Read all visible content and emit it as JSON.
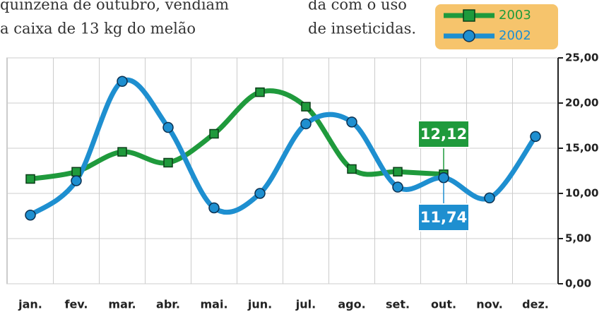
{
  "article_text": [
    "quinzena de outubro, vendiam",
    "a caixa  de 13 kg do melão",
    "da com o uso",
    "de inseticidas."
  ],
  "chart_data": {
    "type": "line",
    "categories": [
      "jan.",
      "fev.",
      "mar.",
      "abr.",
      "mai.",
      "jun.",
      "jul.",
      "ago.",
      "set.",
      "out.",
      "nov.",
      "dez."
    ],
    "series": [
      {
        "name": "2003",
        "color": "#1f9a3c",
        "marker": "square",
        "values": [
          11.6,
          12.4,
          14.6,
          13.4,
          16.6,
          21.2,
          19.6,
          12.7,
          12.4,
          12.12,
          null,
          null
        ],
        "value_labels": [
          null,
          null,
          null,
          null,
          null,
          null,
          null,
          null,
          null,
          "12,12",
          null,
          null
        ]
      },
      {
        "name": "2002",
        "color": "#1e8fd0",
        "marker": "circle",
        "values": [
          7.6,
          11.4,
          22.4,
          17.3,
          8.4,
          10.0,
          17.7,
          17.9,
          10.7,
          11.74,
          9.5,
          16.3
        ],
        "value_labels": [
          null,
          null,
          null,
          null,
          null,
          null,
          null,
          null,
          null,
          "11,74",
          null,
          null
        ]
      }
    ],
    "ylim": [
      0,
      25
    ],
    "yticks": [
      {
        "value": 0,
        "label": "0,00"
      },
      {
        "value": 5,
        "label": "5,00"
      },
      {
        "value": 10,
        "label": "10,00"
      },
      {
        "value": 15,
        "label": "15,00"
      },
      {
        "value": 20,
        "label": "20,00"
      },
      {
        "value": 25,
        "label": "25,00"
      }
    ],
    "grid": true,
    "legend": "top-right"
  }
}
